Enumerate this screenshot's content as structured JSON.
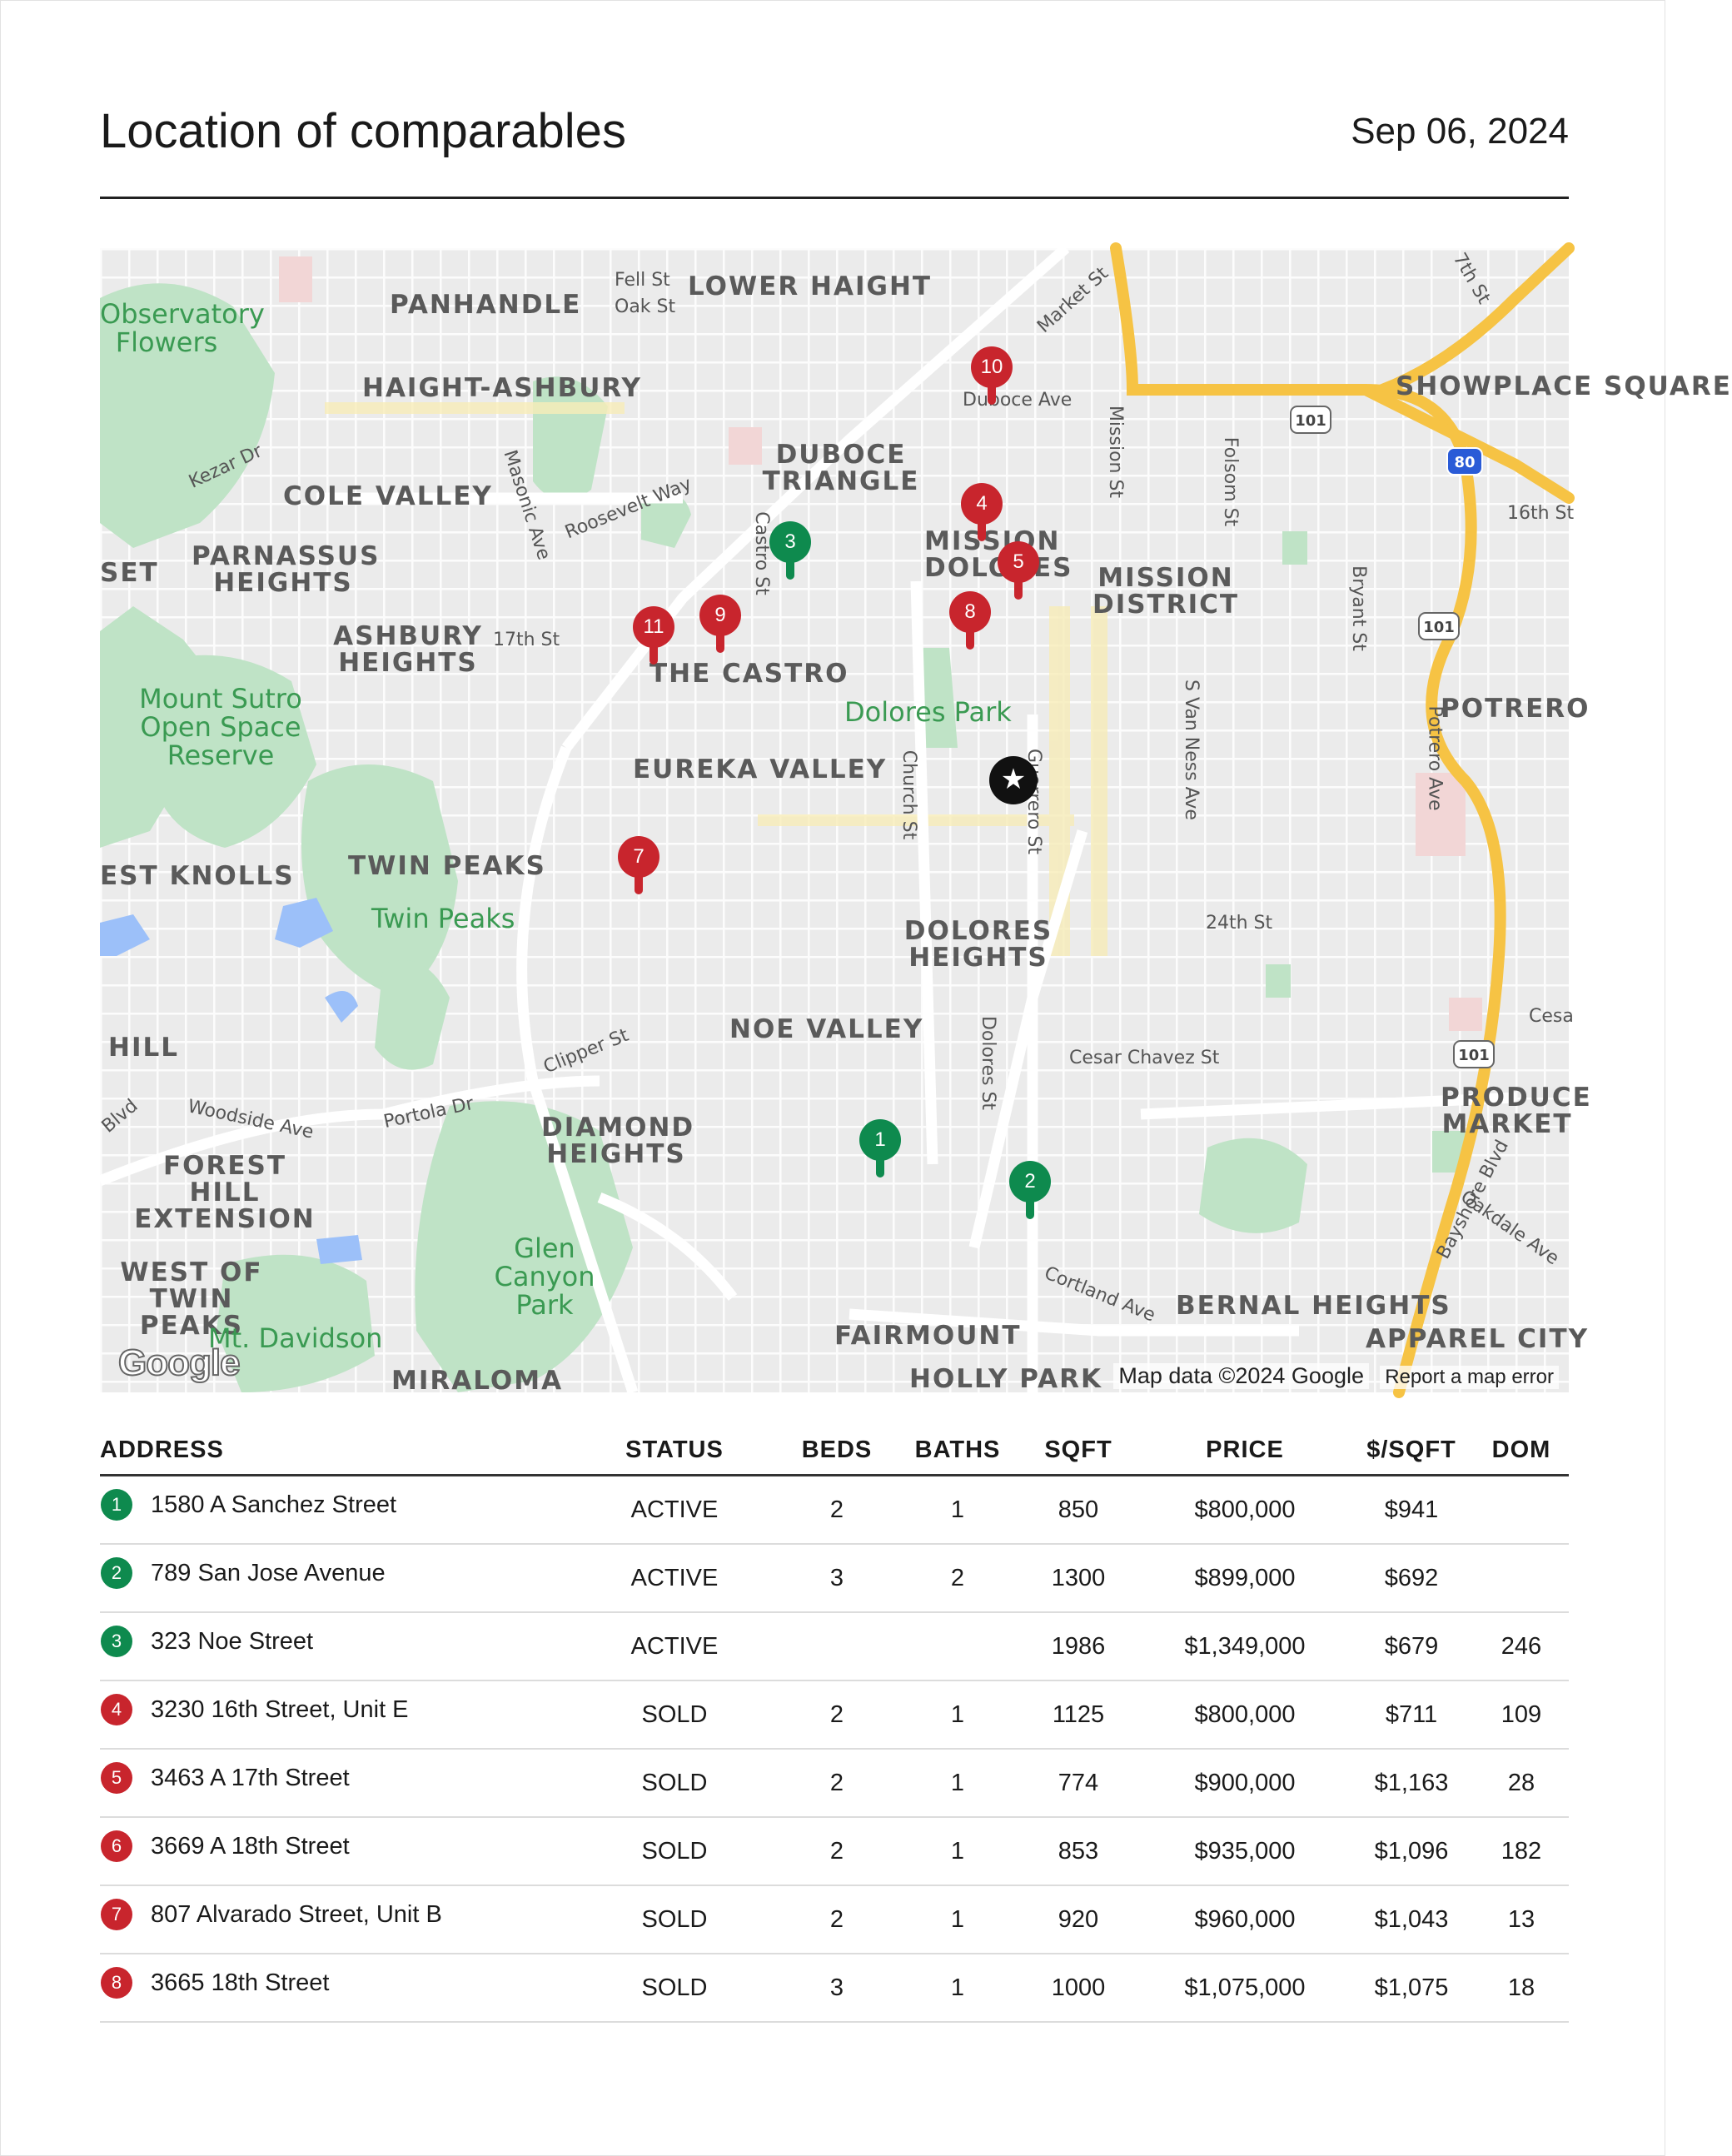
{
  "header": {
    "title": "Location of comparables",
    "date": "Sep 06, 2024"
  },
  "map": {
    "copyright": "Map data ©2024 Google",
    "report_link": "Report a map error",
    "logo": "Google",
    "neighborhoods": [
      "PANHANDLE",
      "LOWER HAIGHT",
      "HAIGHT-ASHBURY",
      "SHOWPLACE SQUARE",
      "DUBOCE TRIANGLE",
      "COLE VALLEY",
      "PARNASSUS HEIGHTS",
      "MISSION DOLORES",
      "MISSION DISTRICT",
      "ASHBURY HEIGHTS",
      "THE CASTRO",
      "POTRERO",
      "EUREKA VALLEY",
      "TWIN PEAKS",
      "DOLORES HEIGHTS",
      "NOE VALLEY",
      "HILL",
      "FOREST HILL EXTENSION",
      "DIAMOND HEIGHTS",
      "PRODUCE MARKET",
      "WEST OF TWIN PEAKS",
      "FAIRMOUNT",
      "BERNAL HEIGHTS",
      "APPAREL CITY",
      "MIRALOMA",
      "HOLLY PARK",
      "SET",
      "EST KNOLLS"
    ],
    "parks": [
      "Observatory Flowers",
      "Mount Sutro Open Space Reserve",
      "Dolores Park",
      "Twin Peaks",
      "Glen Canyon Park",
      "Mt. Davidson"
    ],
    "streets": [
      "Fell St",
      "Oak St",
      "Market St",
      "Duboce Ave",
      "Mission St",
      "Folsom St",
      "16th St",
      "Kezar Dr",
      "Masonic Ave",
      "Roosevelt Way",
      "Castro St",
      "17th St",
      "Bryant St",
      "S Van Ness Ave",
      "Potrero Ave",
      "Church St",
      "Guerrero St",
      "24th St",
      "Dolores St",
      "Cesar Chavez St",
      "Clipper St",
      "Woodside Ave",
      "Portola Dr",
      "Bayshore Blvd",
      "Oakdale Ave",
      "Cortland Ave",
      "7th St",
      "Cesa",
      "Blvd"
    ],
    "highway_shields": [
      "101",
      "80",
      "101",
      "101"
    ],
    "markers": [
      {
        "num": "10",
        "status": "sold"
      },
      {
        "num": "4",
        "status": "sold"
      },
      {
        "num": "3",
        "status": "active"
      },
      {
        "num": "5",
        "status": "sold"
      },
      {
        "num": "8",
        "status": "sold"
      },
      {
        "num": "9",
        "status": "sold"
      },
      {
        "num": "11",
        "status": "sold"
      },
      {
        "num": "7",
        "status": "sold"
      },
      {
        "num": "1",
        "status": "active"
      },
      {
        "num": "2",
        "status": "active"
      }
    ],
    "subject_symbol": "★"
  },
  "table": {
    "headers": [
      "ADDRESS",
      "STATUS",
      "BEDS",
      "BATHS",
      "SQFT",
      "PRICE",
      "$/SQFT",
      "DOM"
    ],
    "rows": [
      {
        "num": "1",
        "address": "1580 A Sanchez Street",
        "status": "ACTIVE",
        "beds": "2",
        "baths": "1",
        "sqft": "850",
        "price": "$800,000",
        "ppsf": "$941",
        "dom": ""
      },
      {
        "num": "2",
        "address": "789 San Jose Avenue",
        "status": "ACTIVE",
        "beds": "3",
        "baths": "2",
        "sqft": "1300",
        "price": "$899,000",
        "ppsf": "$692",
        "dom": ""
      },
      {
        "num": "3",
        "address": "323 Noe Street",
        "status": "ACTIVE",
        "beds": "",
        "baths": "",
        "sqft": "1986",
        "price": "$1,349,000",
        "ppsf": "$679",
        "dom": "246"
      },
      {
        "num": "4",
        "address": "3230 16th Street, Unit E",
        "status": "SOLD",
        "beds": "2",
        "baths": "1",
        "sqft": "1125",
        "price": "$800,000",
        "ppsf": "$711",
        "dom": "109"
      },
      {
        "num": "5",
        "address": "3463 A 17th Street",
        "status": "SOLD",
        "beds": "2",
        "baths": "1",
        "sqft": "774",
        "price": "$900,000",
        "ppsf": "$1,163",
        "dom": "28"
      },
      {
        "num": "6",
        "address": "3669 A 18th Street",
        "status": "SOLD",
        "beds": "2",
        "baths": "1",
        "sqft": "853",
        "price": "$935,000",
        "ppsf": "$1,096",
        "dom": "182"
      },
      {
        "num": "7",
        "address": "807 Alvarado Street, Unit B",
        "status": "SOLD",
        "beds": "2",
        "baths": "1",
        "sqft": "920",
        "price": "$960,000",
        "ppsf": "$1,043",
        "dom": "13"
      },
      {
        "num": "8",
        "address": "3665 18th Street",
        "status": "SOLD",
        "beds": "3",
        "baths": "1",
        "sqft": "1000",
        "price": "$1,075,000",
        "ppsf": "$1,075",
        "dom": "18"
      }
    ]
  },
  "colors": {
    "active": "#0e8a4e",
    "sold": "#c8252d",
    "park": "#a8dab5",
    "highway": "#f6c344"
  }
}
